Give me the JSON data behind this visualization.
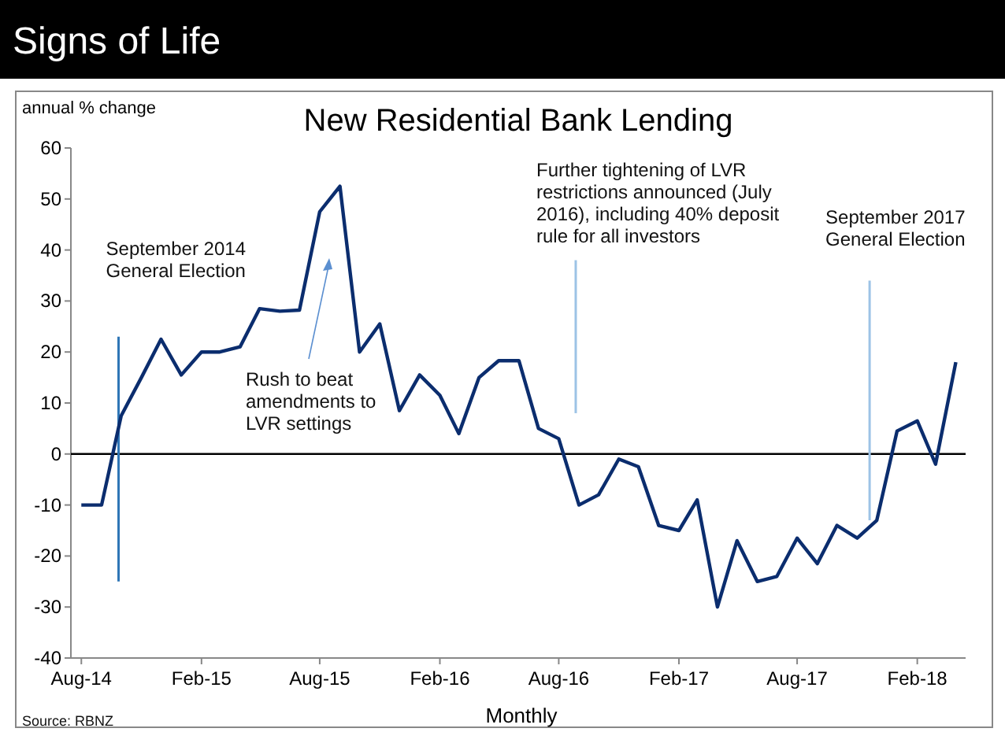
{
  "chart_data": {
    "type": "line",
    "title": "Signs of Life",
    "subtitle": "New Residential Bank Lending",
    "ylabel": "annual % change",
    "xlabel": "Monthly",
    "annotations": [
      "Rush to beat amendments to LVR settings",
      "Source: RBNZ"
    ],
    "x": [
      "2014-08",
      "2014-09",
      "2014-10",
      "2014-11",
      "2014-12",
      "2015-01",
      "2015-02",
      "2015-03",
      "2015-04",
      "2015-05",
      "2015-06",
      "2015-07",
      "2015-08",
      "2015-09",
      "2015-10",
      "2015-11",
      "2015-12",
      "2016-01",
      "2016-02",
      "2016-03",
      "2016-04",
      "2016-05",
      "2016-06",
      "2016-07",
      "2016-08",
      "2016-09",
      "2016-10",
      "2016-11",
      "2016-12",
      "2017-01",
      "2017-02",
      "2017-03",
      "2017-04",
      "2017-05",
      "2017-06",
      "2017-07",
      "2017-08",
      "2017-09",
      "2017-10",
      "2017-11",
      "2017-12",
      "2018-01",
      "2018-02",
      "2018-03",
      "2018-04"
    ],
    "series": [
      {
        "color": "#0b2d6e",
        "values": [
          -10,
          -10,
          7.5,
          15,
          22.5,
          15.5,
          20,
          20,
          21,
          28.5,
          28,
          28.2,
          47.5,
          52.5,
          20,
          25.5,
          8.5,
          15.5,
          11.5,
          4,
          15,
          18.3,
          18.3,
          5,
          3,
          -10,
          -8,
          -1,
          -2.5,
          -14,
          -15,
          -9,
          -30,
          -17,
          -25,
          -24,
          -16.5,
          -21.5,
          -14,
          -16.5,
          -13,
          4.5,
          6.5,
          -2,
          18
        ]
      }
    ],
    "xlim": [
      "2014-07-16",
      "2018-04-16"
    ],
    "xticks": [
      {
        "value": "2014-08",
        "label": "Aug-14"
      },
      {
        "value": "2015-02",
        "label": "Feb-15"
      },
      {
        "value": "2015-08",
        "label": "Aug-15"
      },
      {
        "value": "2016-02",
        "label": "Feb-16"
      },
      {
        "value": "2016-08",
        "label": "Aug-16"
      },
      {
        "value": "2017-02",
        "label": "Feb-17"
      },
      {
        "value": "2017-08",
        "label": "Aug-17"
      },
      {
        "value": "2018-02",
        "label": "Feb-18"
      }
    ],
    "ylim": [
      -40,
      60
    ],
    "yticks": [
      -40,
      -30,
      -20,
      -10,
      0,
      10,
      20,
      30,
      40,
      50,
      60
    ],
    "ref_lines": [
      {
        "axis": "y",
        "value": 0,
        "color": "#000000"
      },
      {
        "axis": "x",
        "value": "2014-09-27",
        "label": "September 2014\nGeneral Election",
        "color": "#2e75b6"
      },
      {
        "axis": "x",
        "value": "2016-08-27",
        "label": "Further tightening of LVR\nrestrictions announced (July\n2016), including 40% deposit\nrule for all investors",
        "color": "#9dc3e6"
      },
      {
        "axis": "x",
        "value": "2017-11-20",
        "label": "September 2017\nGeneral Election",
        "color": "#9dc3e6"
      }
    ],
    "grid": false,
    "marker": "none",
    "line_style": "solid"
  }
}
